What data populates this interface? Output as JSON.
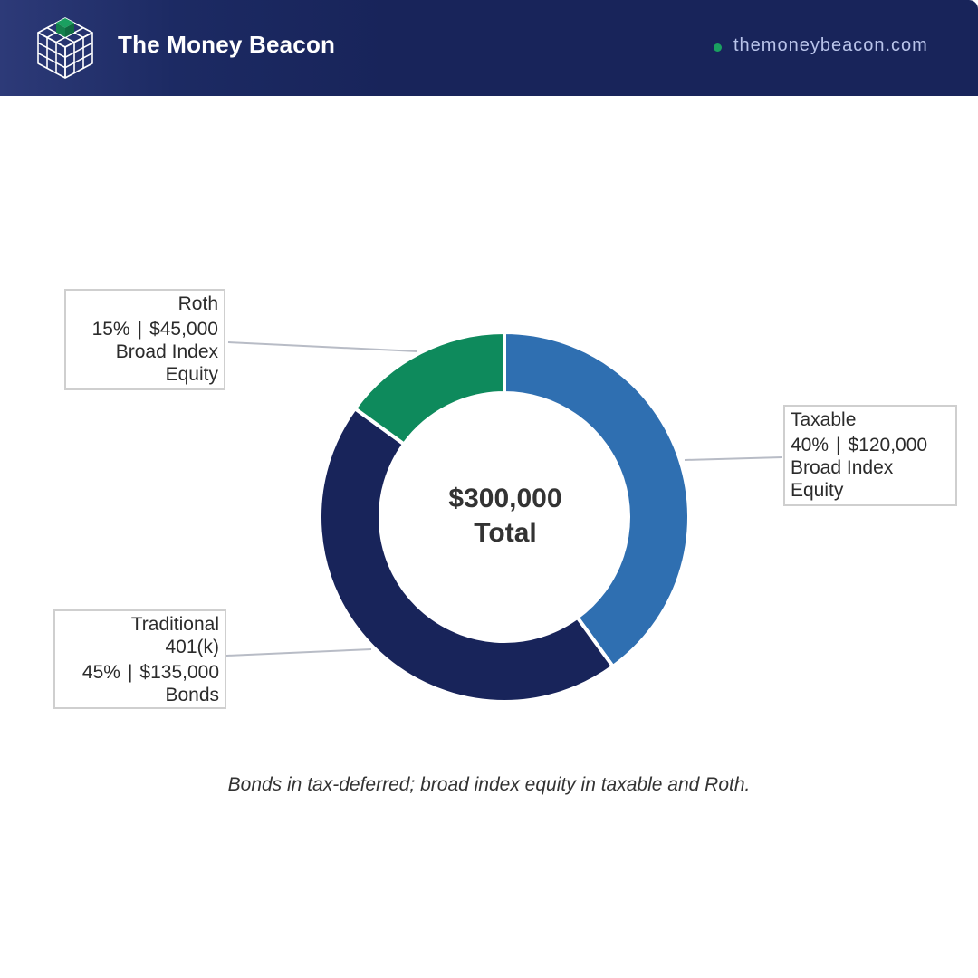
{
  "header": {
    "brand_name": "The Money Beacon",
    "site_url": "themoneybeacon.com",
    "logo_icon": "cube-grid-icon",
    "dot_color": "#1aa060"
  },
  "chart_data": {
    "type": "pie",
    "subtype": "donut",
    "title": "",
    "center_label": {
      "value": "$300,000",
      "text": "Total"
    },
    "slices": [
      {
        "name": "Taxable",
        "percent": 40,
        "percent_label": "40%",
        "amount": "$120,000",
        "holding": [
          "Broad Index",
          "Equity"
        ],
        "color": "#2f6fb1"
      },
      {
        "name": "Traditional 401(k)",
        "name_lines": [
          "Traditional",
          "401(k)"
        ],
        "percent": 45,
        "percent_label": "45%",
        "amount": "$135,000",
        "holding": [
          "Bonds"
        ],
        "color": "#18245a"
      },
      {
        "name": "Roth",
        "percent": 15,
        "percent_label": "15%",
        "amount": "$45,000",
        "holding": [
          "Broad Index",
          "Equity"
        ],
        "color": "#0e8a5c"
      }
    ],
    "separator": "|"
  },
  "caption": "Bonds in tax-deferred; broad index equity in taxable and Roth."
}
